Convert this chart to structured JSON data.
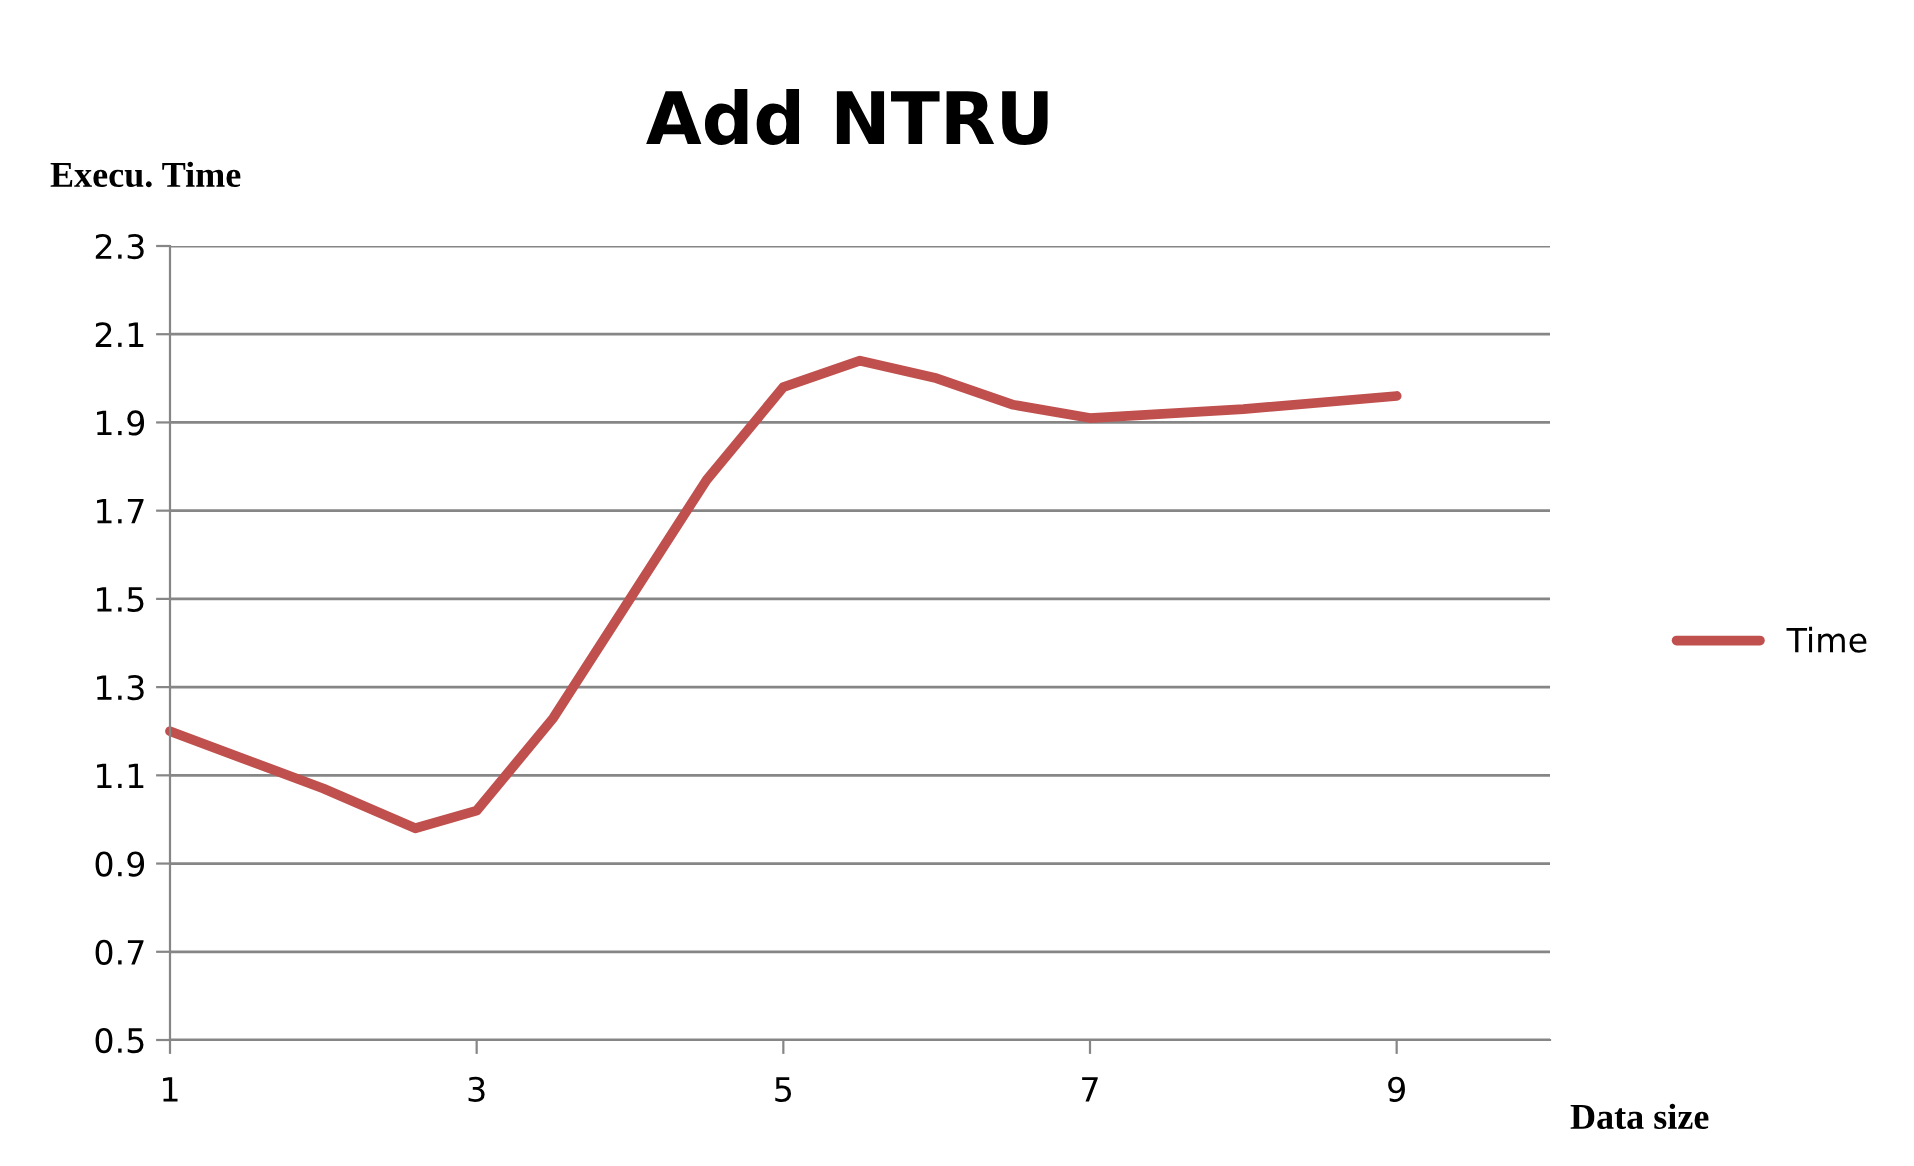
{
  "chart_data": {
    "type": "line",
    "title": "Add NTRU",
    "xlabel": "Data size",
    "ylabel": "Execu. Time",
    "x": [
      1,
      2,
      2.6,
      3,
      3.5,
      4,
      4.5,
      5,
      5.5,
      6,
      6.5,
      7,
      8,
      9
    ],
    "series": [
      {
        "name": "Time",
        "color": "#c0504d",
        "values": [
          1.2,
          1.07,
          0.98,
          1.02,
          1.23,
          1.5,
          1.77,
          1.98,
          2.04,
          2.0,
          1.94,
          1.91,
          1.93,
          1.96
        ]
      }
    ],
    "xlim": [
      1,
      10
    ],
    "xticks": [
      1,
      3,
      5,
      7,
      9
    ],
    "ylim": [
      0.5,
      2.3
    ],
    "yticks": [
      0.5,
      0.7,
      0.9,
      1.1,
      1.3,
      1.5,
      1.7,
      1.9,
      2.1,
      2.3
    ],
    "grid": "y",
    "legend": "right",
    "marker": "none",
    "line_style": "solid"
  }
}
